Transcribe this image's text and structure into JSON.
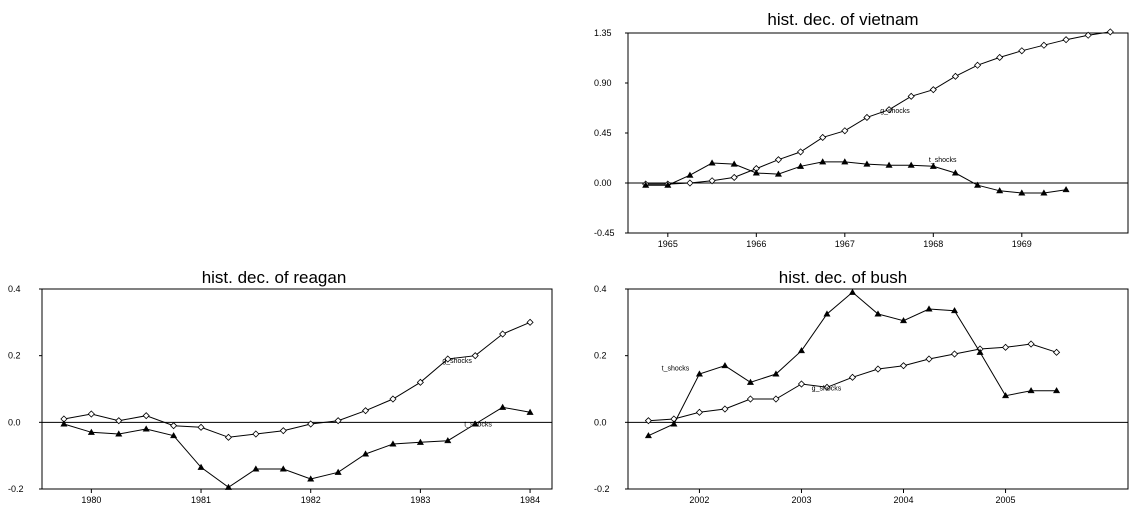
{
  "chart_data": [
    {
      "id": "vietnam",
      "type": "line",
      "title": "hist. dec. of vietnam",
      "ylim": [
        -0.45,
        1.35
      ],
      "yticks": [
        {
          "value": 1.35,
          "label": "1.35"
        },
        {
          "value": 0.9,
          "label": "0.90"
        },
        {
          "value": 0.45,
          "label": "0.45"
        },
        {
          "value": 0.0,
          "label": "0.00"
        },
        {
          "value": -0.45,
          "label": "-0.45"
        }
      ],
      "xlim": [
        1964.55,
        1970.2
      ],
      "xticks": [
        {
          "value": 1965,
          "label": "1965"
        },
        {
          "value": 1966,
          "label": "1966"
        },
        {
          "value": 1967,
          "label": "1967"
        },
        {
          "value": 1968,
          "label": "1968"
        },
        {
          "value": 1969,
          "label": "1969"
        }
      ],
      "x": [
        1964.75,
        1965.0,
        1965.25,
        1965.5,
        1965.75,
        1966.0,
        1966.25,
        1966.5,
        1966.75,
        1967.0,
        1967.25,
        1967.5,
        1967.75,
        1968.0,
        1968.25,
        1968.5,
        1968.75,
        1969.0,
        1969.25,
        1969.5,
        1969.75,
        1970.0
      ],
      "zero_line": true,
      "series": [
        {
          "name": "g_shocks",
          "marker": "diamond",
          "values": [
            -0.01,
            -0.01,
            0.0,
            0.02,
            0.05,
            0.13,
            0.21,
            0.28,
            0.41,
            0.47,
            0.59,
            0.66,
            0.78,
            0.84,
            0.96,
            1.06,
            1.13,
            1.19,
            1.24,
            1.29,
            1.33,
            1.36
          ],
          "label_pos": {
            "x": 1967.4,
            "y": 0.63
          }
        },
        {
          "name": "t_shocks",
          "marker": "triangle",
          "values": [
            -0.02,
            -0.02,
            0.07,
            0.18,
            0.17,
            0.09,
            0.08,
            0.15,
            0.19,
            0.19,
            0.17,
            0.16,
            0.16,
            0.15,
            0.09,
            -0.02,
            -0.07,
            -0.09,
            -0.09,
            -0.06,
            null,
            null
          ],
          "label_pos": {
            "x": 1967.95,
            "y": 0.19
          }
        }
      ]
    },
    {
      "id": "reagan",
      "type": "line",
      "title": "hist. dec. of reagan",
      "ylim": [
        -0.2,
        0.4
      ],
      "yticks": [
        {
          "value": 0.4,
          "label": "0.4"
        },
        {
          "value": 0.2,
          "label": "0.2"
        },
        {
          "value": 0.0,
          "label": "0.0"
        },
        {
          "value": -0.2,
          "label": "-0.2"
        }
      ],
      "xlim": [
        1979.55,
        1984.2
      ],
      "xticks": [
        {
          "value": 1980,
          "label": "1980"
        },
        {
          "value": 1981,
          "label": "1981"
        },
        {
          "value": 1982,
          "label": "1982"
        },
        {
          "value": 1983,
          "label": "1983"
        },
        {
          "value": 1984,
          "label": "1984"
        }
      ],
      "x": [
        1979.75,
        1980.0,
        1980.25,
        1980.5,
        1980.75,
        1981.0,
        1981.25,
        1981.5,
        1981.75,
        1982.0,
        1982.25,
        1982.5,
        1982.75,
        1983.0,
        1983.25,
        1983.5,
        1983.75,
        1984.0
      ],
      "zero_line": true,
      "series": [
        {
          "name": "g_shocks",
          "marker": "diamond",
          "values": [
            0.01,
            0.025,
            0.005,
            0.02,
            -0.01,
            -0.015,
            -0.045,
            -0.035,
            -0.025,
            -0.005,
            0.005,
            0.035,
            0.07,
            0.12,
            0.19,
            0.2,
            0.265,
            0.3
          ],
          "label_pos": {
            "x": 1983.2,
            "y": 0.178
          }
        },
        {
          "name": "t_shocks",
          "marker": "triangle",
          "values": [
            -0.005,
            -0.03,
            -0.035,
            -0.02,
            -0.04,
            -0.135,
            -0.195,
            -0.14,
            -0.14,
            -0.17,
            -0.15,
            -0.095,
            -0.065,
            -0.06,
            -0.055,
            -0.005,
            0.045,
            0.03
          ],
          "label_pos": {
            "x": 1983.4,
            "y": -0.012
          }
        }
      ]
    },
    {
      "id": "bush",
      "type": "line",
      "title": "hist. dec. of bush",
      "ylim": [
        -0.2,
        0.4
      ],
      "yticks": [
        {
          "value": 0.4,
          "label": "0.4"
        },
        {
          "value": 0.2,
          "label": "0.2"
        },
        {
          "value": 0.0,
          "label": "0.0"
        },
        {
          "value": -0.2,
          "label": "-0.2"
        }
      ],
      "xlim": [
        2001.3,
        2006.2
      ],
      "xticks": [
        {
          "value": 2002,
          "label": "2002"
        },
        {
          "value": 2003,
          "label": "2003"
        },
        {
          "value": 2004,
          "label": "2004"
        },
        {
          "value": 2005,
          "label": "2005"
        }
      ],
      "x": [
        2001.5,
        2001.75,
        2002.0,
        2002.25,
        2002.5,
        2002.75,
        2003.0,
        2003.25,
        2003.5,
        2003.75,
        2004.0,
        2004.25,
        2004.5,
        2004.75,
        2005.0,
        2005.25,
        2005.5,
        2005.75
      ],
      "zero_line": true,
      "series": [
        {
          "name": "g_shocks",
          "marker": "diamond",
          "values": [
            0.005,
            0.01,
            0.03,
            0.04,
            0.07,
            0.07,
            0.115,
            0.105,
            0.135,
            0.16,
            0.17,
            0.19,
            0.205,
            0.22,
            0.225,
            0.235,
            0.21,
            null
          ],
          "label_pos": {
            "x": 2003.1,
            "y": 0.095
          }
        },
        {
          "name": "t_shocks",
          "marker": "triangle",
          "values": [
            -0.04,
            -0.005,
            0.145,
            0.17,
            0.12,
            0.145,
            0.215,
            0.325,
            0.39,
            0.325,
            0.305,
            0.34,
            0.335,
            0.21,
            0.08,
            0.095,
            0.095,
            null
          ],
          "label_pos": {
            "x": 2001.63,
            "y": 0.155
          }
        }
      ]
    }
  ]
}
